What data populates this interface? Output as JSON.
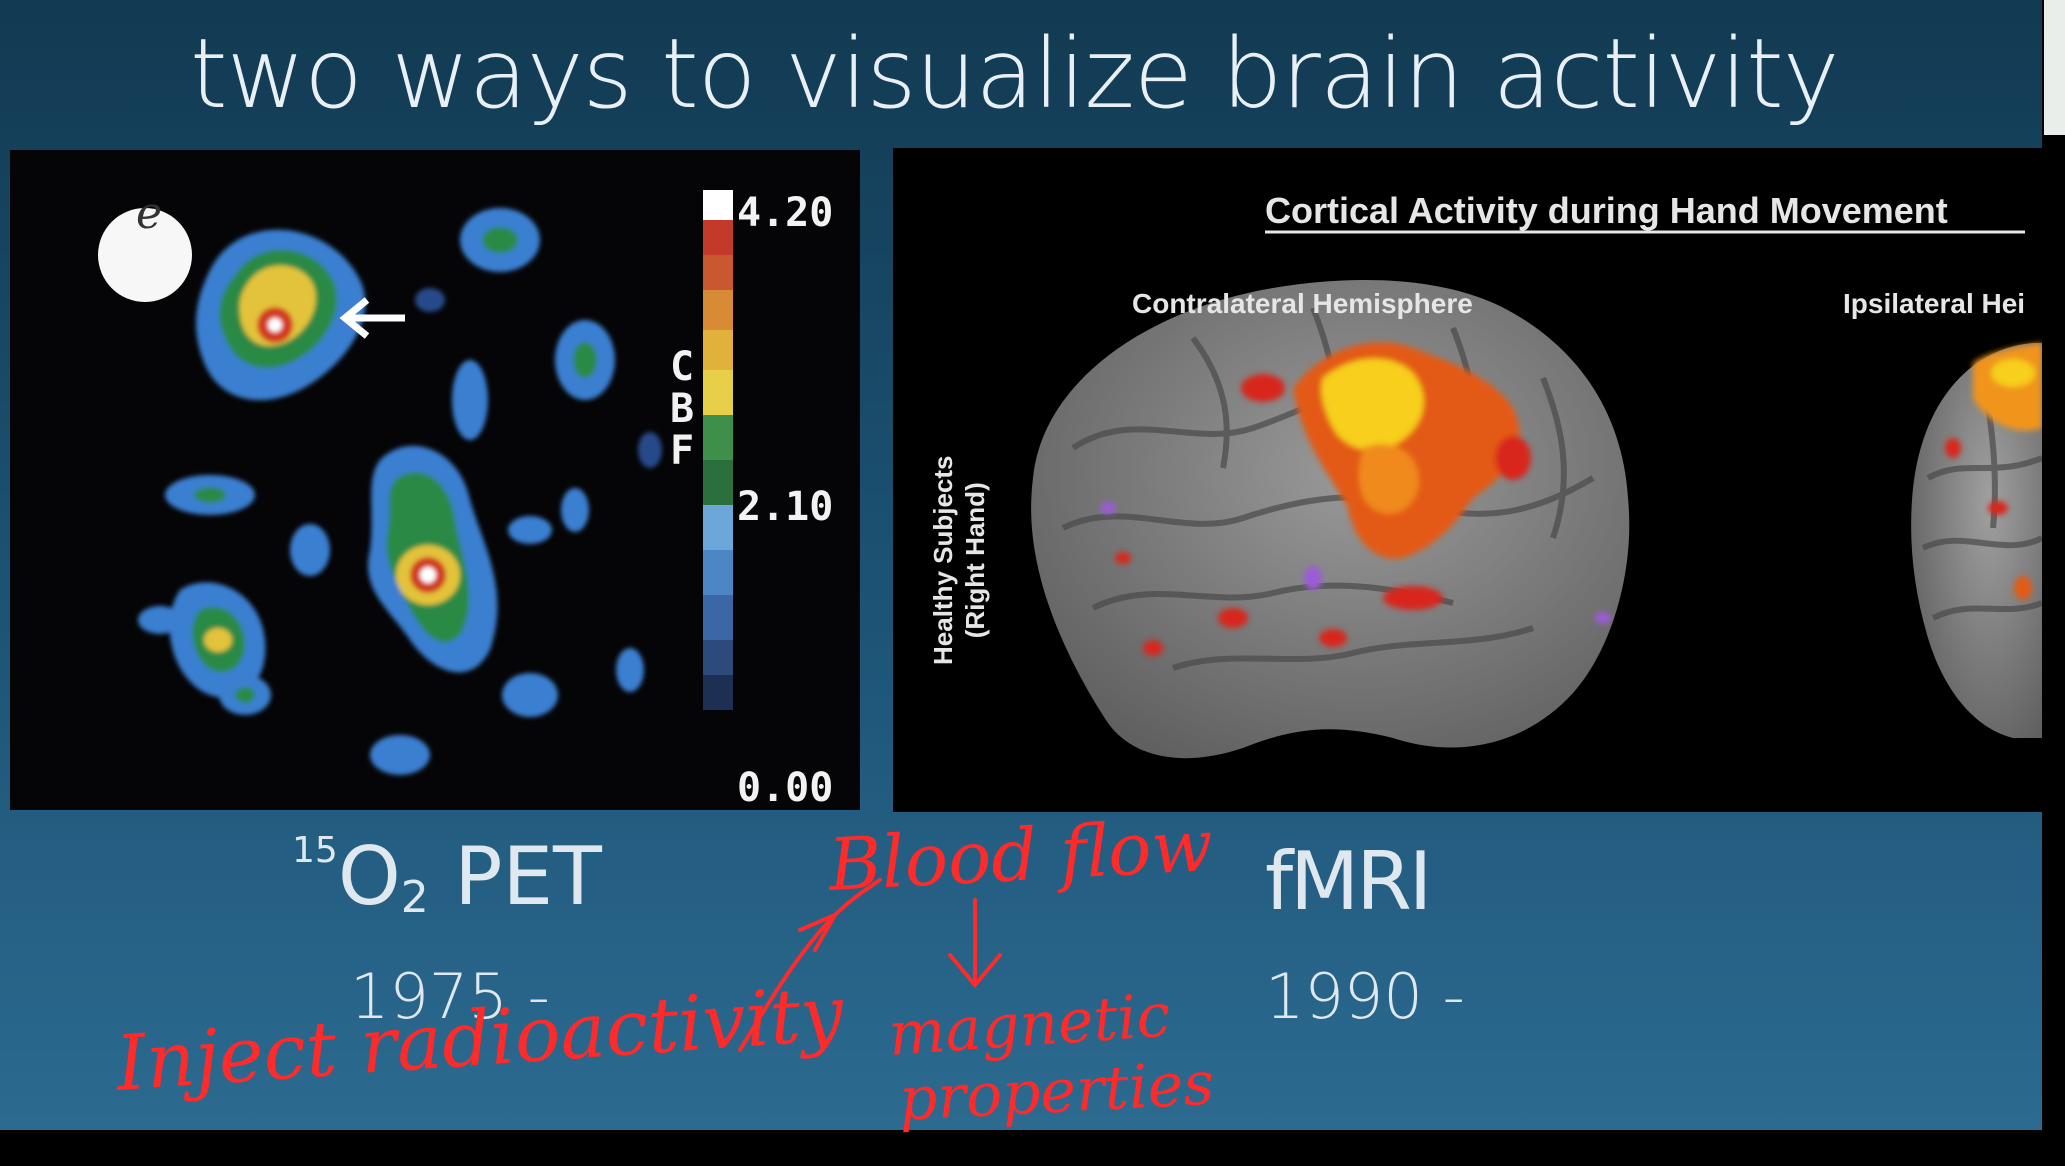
{
  "slide": {
    "title": "two ways to visualize brain activity"
  },
  "pet_panel": {
    "panel_letter": "e",
    "colorbar_max": "4.20",
    "colorbar_mid": "2.10",
    "colorbar_min": "0.00",
    "colorbar_label_c": "C",
    "colorbar_label_b": "B",
    "colorbar_label_f": "F"
  },
  "fmri_panel": {
    "title": "Cortical Activity during Hand Movement",
    "left_subtitle": "Contralateral Hemisphere",
    "right_subtitle": "Ipsilateral Hei",
    "row_label_line1": "Healthy Subjects",
    "row_label_line2": "(Right Hand)"
  },
  "captions": {
    "pet_isotope": "15",
    "pet_o": "O",
    "pet_sub": "2",
    "pet_rest": " PET",
    "pet_year": "1975 -",
    "fmri_label": "fMRI",
    "fmri_year": "1990 -"
  },
  "annotations": {
    "note_blood_flow": "Blood flow",
    "note_magnetic": "magnetic",
    "note_properties": "properties",
    "note_inject": "Inject radioactivity"
  }
}
